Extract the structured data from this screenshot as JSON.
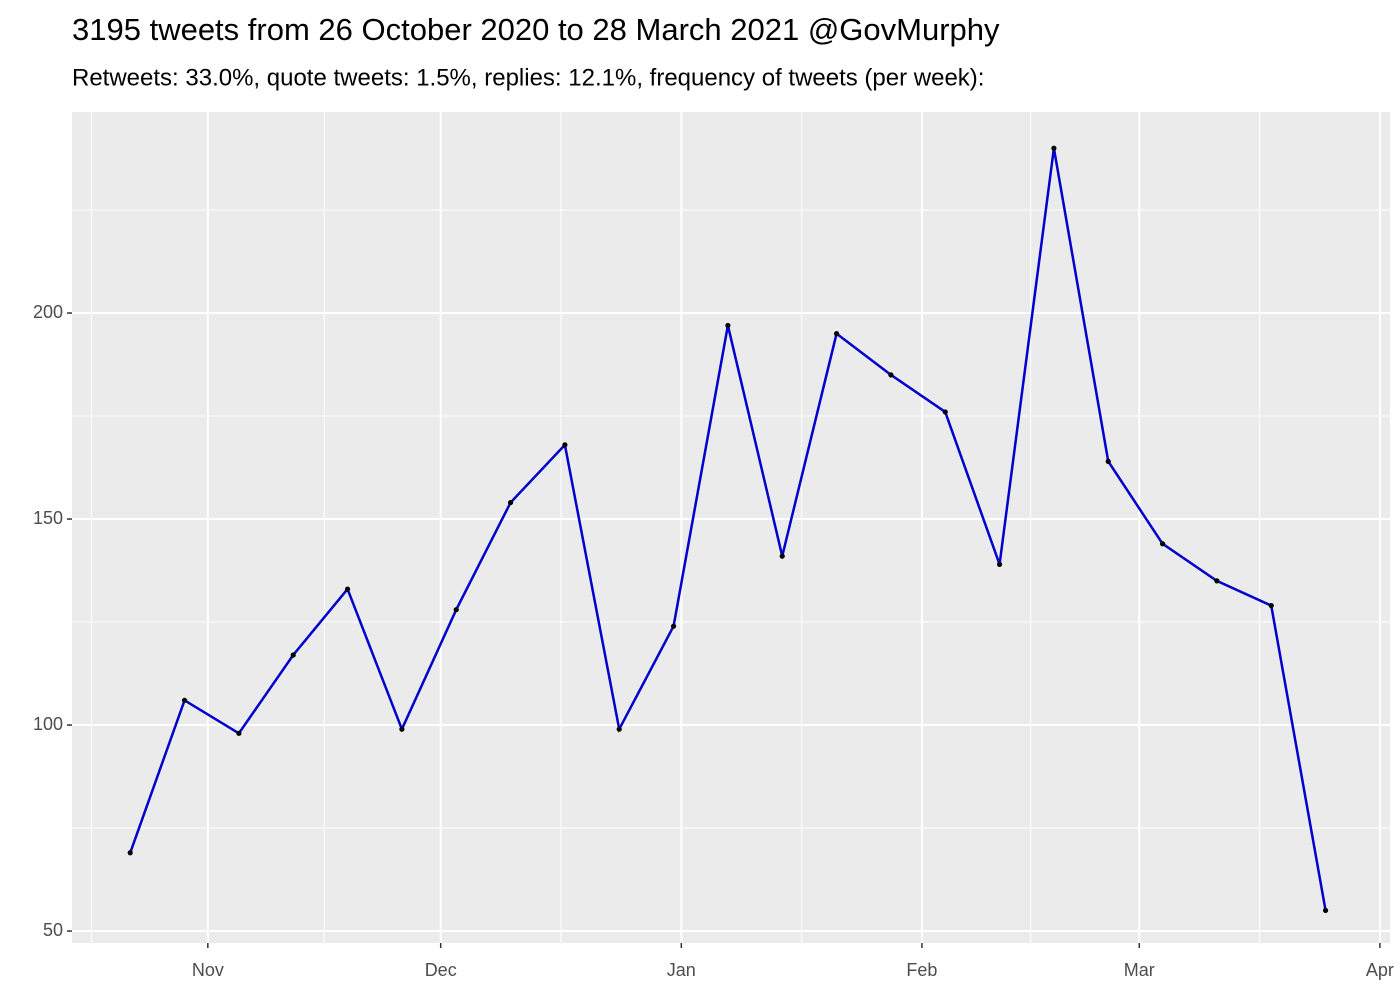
{
  "chart_data": {
    "type": "line",
    "title": "3195 tweets from 26 October 2020 to 28 March 2021 @GovMurphy",
    "subtitle": "Retweets: 33.0%, quote tweets: 1.5%, replies: 12.1%, frequency of tweets (per week):",
    "x": [
      -10,
      -3,
      4,
      11,
      18,
      25,
      32,
      39,
      46,
      53,
      60,
      67,
      74,
      81,
      88,
      95,
      102,
      109,
      116,
      123,
      130,
      137,
      144
    ],
    "series": [
      {
        "color": "#0000cd",
        "point_color": "#000000",
        "values": [
          69,
          106,
          98,
          117,
          133,
          99,
          128,
          154,
          168,
          99,
          124,
          197,
          141,
          195,
          185,
          176,
          139,
          240,
          164,
          144,
          135,
          129,
          55
        ]
      }
    ],
    "xlim": [
      -17.5,
      152.3
    ],
    "xticks": [
      {
        "value": 0,
        "label": "Nov"
      },
      {
        "value": 30,
        "label": "Dec"
      },
      {
        "value": 61,
        "label": "Jan"
      },
      {
        "value": 92,
        "label": "Feb"
      },
      {
        "value": 120,
        "label": "Mar"
      },
      {
        "value": 151,
        "label": "Apr"
      }
    ],
    "ylim": [
      47.1,
      248.8
    ],
    "yticks": [
      50,
      100,
      150,
      200
    ],
    "grid": true,
    "minor_grid": true
  }
}
